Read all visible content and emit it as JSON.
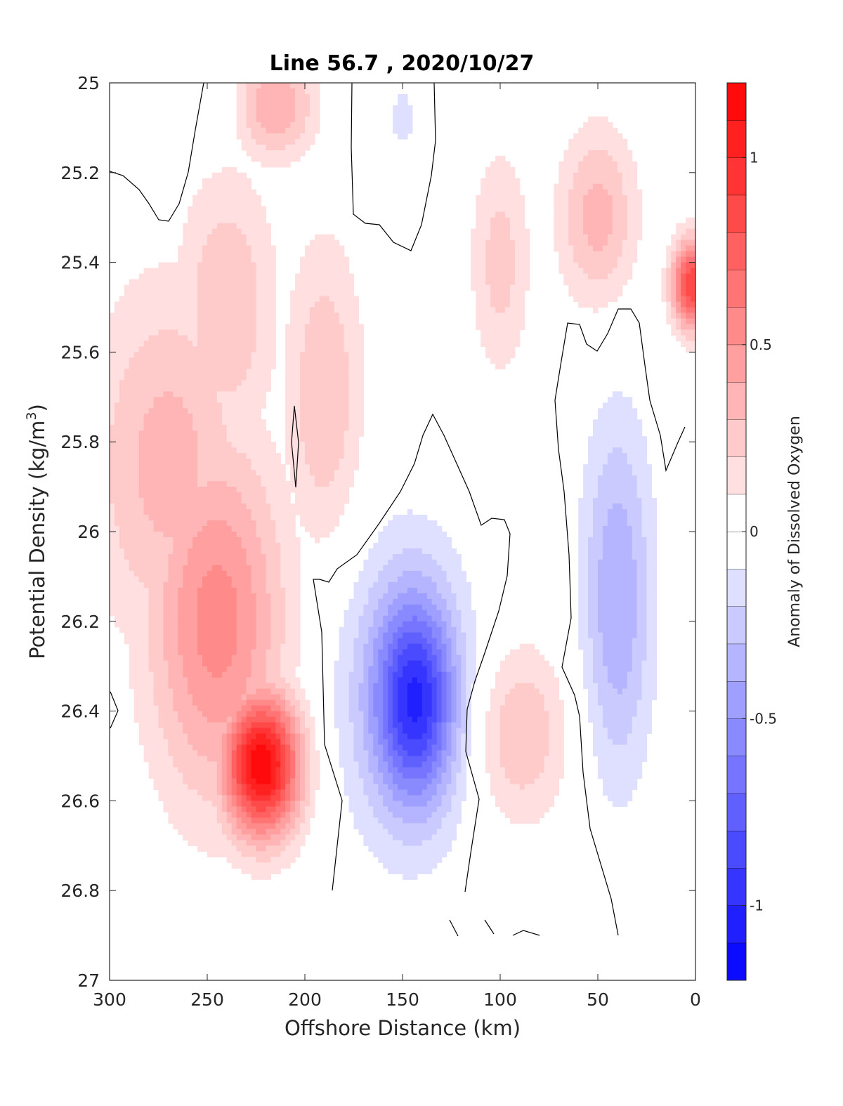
{
  "chart_data": {
    "type": "heatmap",
    "title": "Line 56.7 , 2020/10/27",
    "xlabel": "Offshore Distance (km)",
    "ylabel": "Potential Density (kg/m",
    "ylabel_sup": "3",
    "ylabel_close": ")",
    "colorbar_label": "Anomaly of Dissolved Oxygen",
    "xlim": [
      0,
      300
    ],
    "x_reversed": true,
    "ylim": [
      25,
      27
    ],
    "y_reversed": true,
    "clim": [
      -1.2,
      1.2
    ],
    "x_ticks": [
      300,
      250,
      200,
      150,
      100,
      50,
      0
    ],
    "x_tick_labels": [
      "300",
      "250",
      "200",
      "150",
      "100",
      "50",
      "0"
    ],
    "y_ticks": [
      25,
      25.2,
      25.4,
      25.6,
      25.8,
      26,
      26.2,
      26.4,
      26.6,
      26.8,
      27
    ],
    "y_tick_labels": [
      "25",
      "25.2",
      "25.4",
      "25.6",
      "25.8",
      "26",
      "26.2",
      "26.4",
      "26.6",
      "26.8",
      "27"
    ],
    "colorbar_ticks": [
      1,
      0.5,
      0,
      -0.5,
      -1
    ],
    "colorbar_tick_labels": [
      "1",
      "0.5",
      "0",
      "-0.5",
      "-1"
    ],
    "contour_interval": 0.1,
    "zero_contour": "black",
    "colors": {
      "positive": "#ff0000",
      "negative": "#0000ff",
      "zero": "#ffffff",
      "contour": "#000000",
      "axes": "#262626"
    },
    "anomaly_features": [
      {
        "kind": "max",
        "x": 222,
        "y": 26.52,
        "value": 1.2,
        "sx": 20,
        "sy": 0.16
      },
      {
        "kind": "max",
        "x": 245,
        "y": 26.2,
        "value": 0.55,
        "sx": 35,
        "sy": 0.4
      },
      {
        "kind": "max",
        "x": 270,
        "y": 25.85,
        "value": 0.35,
        "sx": 40,
        "sy": 0.4
      },
      {
        "kind": "max",
        "x": 215,
        "y": 25.05,
        "value": 0.4,
        "sx": 20,
        "sy": 0.12
      },
      {
        "kind": "max",
        "x": 240,
        "y": 25.5,
        "value": 0.3,
        "sx": 25,
        "sy": 0.3
      },
      {
        "kind": "max",
        "x": 190,
        "y": 25.7,
        "value": 0.3,
        "sx": 20,
        "sy": 0.35
      },
      {
        "kind": "max",
        "x": 2,
        "y": 25.45,
        "value": 0.9,
        "sx": 10,
        "sy": 0.1
      },
      {
        "kind": "max",
        "x": 50,
        "y": 25.3,
        "value": 0.35,
        "sx": 20,
        "sy": 0.2
      },
      {
        "kind": "max",
        "x": 90,
        "y": 26.45,
        "value": 0.3,
        "sx": 25,
        "sy": 0.2
      },
      {
        "kind": "max",
        "x": 100,
        "y": 25.4,
        "value": 0.25,
        "sx": 15,
        "sy": 0.25
      },
      {
        "kind": "min",
        "x": 143,
        "y": 26.38,
        "value": -0.75,
        "sx": 20,
        "sy": 0.22
      },
      {
        "kind": "min",
        "x": 150,
        "y": 26.35,
        "value": -0.3,
        "sx": 35,
        "sy": 0.35
      },
      {
        "kind": "min",
        "x": 40,
        "y": 26.15,
        "value": -0.4,
        "sx": 18,
        "sy": 0.4
      },
      {
        "kind": "min",
        "x": 245,
        "y": 25.05,
        "value": -0.12,
        "sx": 10,
        "sy": 0.08
      },
      {
        "kind": "min",
        "x": 150,
        "y": 25.08,
        "value": -0.12,
        "sx": 12,
        "sy": 0.12
      }
    ]
  }
}
